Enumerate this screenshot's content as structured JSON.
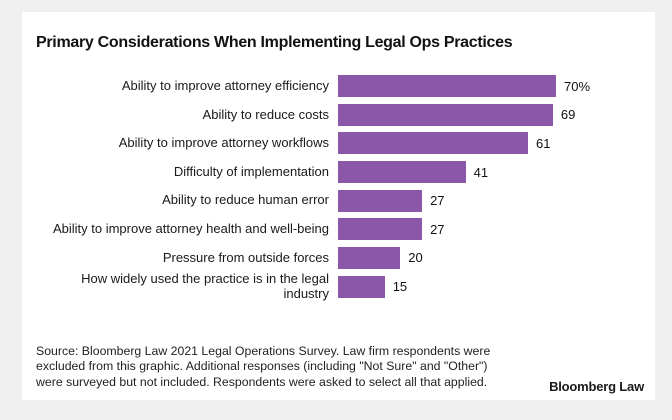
{
  "page": {
    "background_color": "#efefef",
    "card_color": "#ffffff"
  },
  "header": {
    "title": "Primary Considerations When Implementing Legal Ops Practices"
  },
  "chart_data": {
    "type": "bar",
    "orientation": "horizontal",
    "title": "Primary Considerations When Implementing Legal Ops Practices",
    "categories": [
      "Ability to improve attorney efficiency",
      "Ability to reduce costs",
      "Ability to improve attorney workflows",
      "Difficulty of implementation",
      "Ability to reduce human error",
      "Ability to improve attorney health and well-being",
      "Pressure from outside forces",
      "How widely used the practice is in the legal industry"
    ],
    "values": [
      70,
      69,
      61,
      41,
      27,
      27,
      20,
      15
    ],
    "value_labels": [
      "70%",
      "69",
      "61",
      "41",
      "27",
      "27",
      "20",
      "15"
    ],
    "bar_color": "#8B57A8",
    "xlim": [
      0,
      75
    ],
    "grid": false,
    "legend": false,
    "value_label_position": "end-of-bar"
  },
  "footer": {
    "source_lines": [
      "Source: Bloomberg Law 2021 Legal Operations Survey. Law firm respondents were",
      "excluded from this graphic. Additional responses (including \"Not Sure\" and \"Other\")",
      "were surveyed but not included. Respondents were asked to select all that applied."
    ],
    "brand": "Bloomberg Law"
  }
}
